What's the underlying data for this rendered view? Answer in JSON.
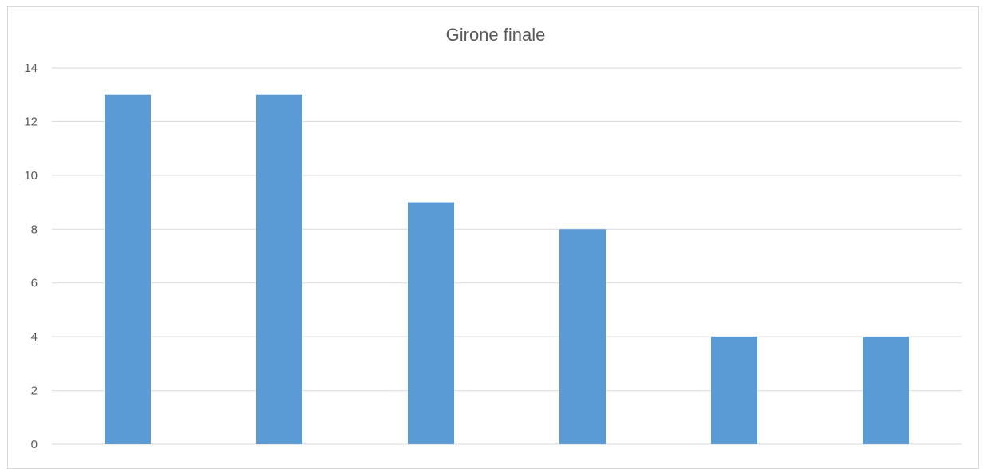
{
  "chart_data": {
    "type": "bar",
    "title": "Girone finale",
    "xlabel": "",
    "ylabel": "",
    "categories": [
      "",
      "",
      "",
      "",
      "",
      ""
    ],
    "values": [
      13,
      13,
      9,
      8,
      4,
      4
    ],
    "ylim": [
      0,
      14
    ],
    "yticks": [
      "0",
      "2",
      "4",
      "6",
      "8",
      "10",
      "12",
      "14"
    ],
    "grid": true,
    "bar_color": "#5b9bd5",
    "grid_color": "#d9d9d9"
  }
}
